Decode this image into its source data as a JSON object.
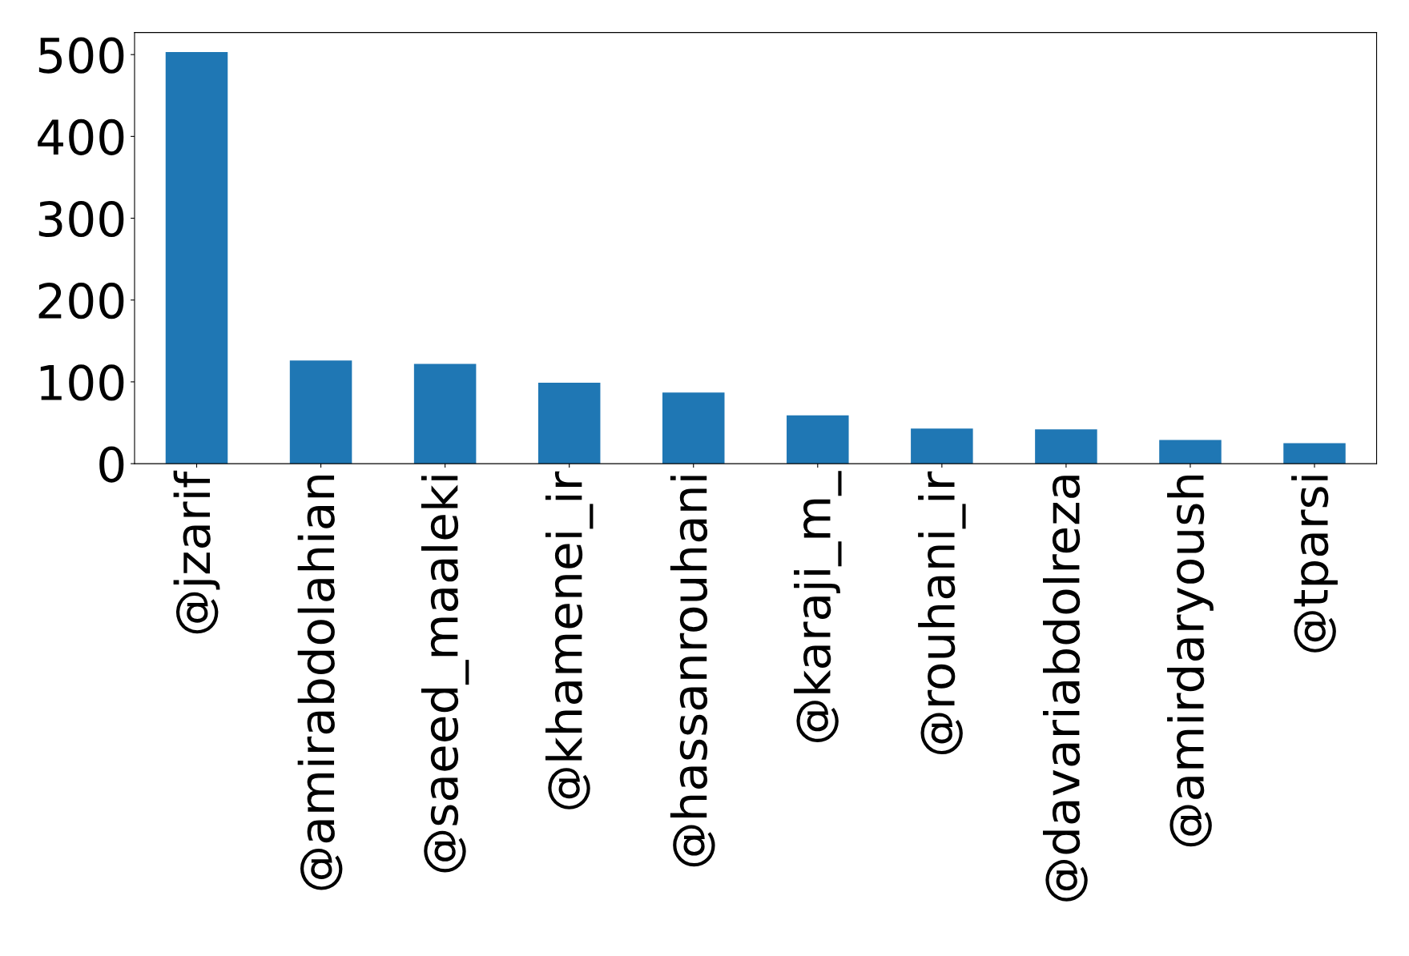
{
  "chart_data": {
    "type": "bar",
    "categories": [
      "@jzarif",
      "@amirabdolahian",
      "@saeed_maaleki",
      "@khamenei_ir",
      "@hassanrouhani",
      "@karaji_m_",
      "@rouhani_ir",
      "@davariabdolreza",
      "@amirdaryoush",
      "@tparsi"
    ],
    "values": [
      503,
      126,
      122,
      99,
      87,
      59,
      43,
      42,
      29,
      25
    ],
    "color": "#1f77b4",
    "ylim": [
      0,
      527
    ],
    "yticks": [
      0,
      100,
      200,
      300,
      400,
      500
    ],
    "grid": false
  }
}
